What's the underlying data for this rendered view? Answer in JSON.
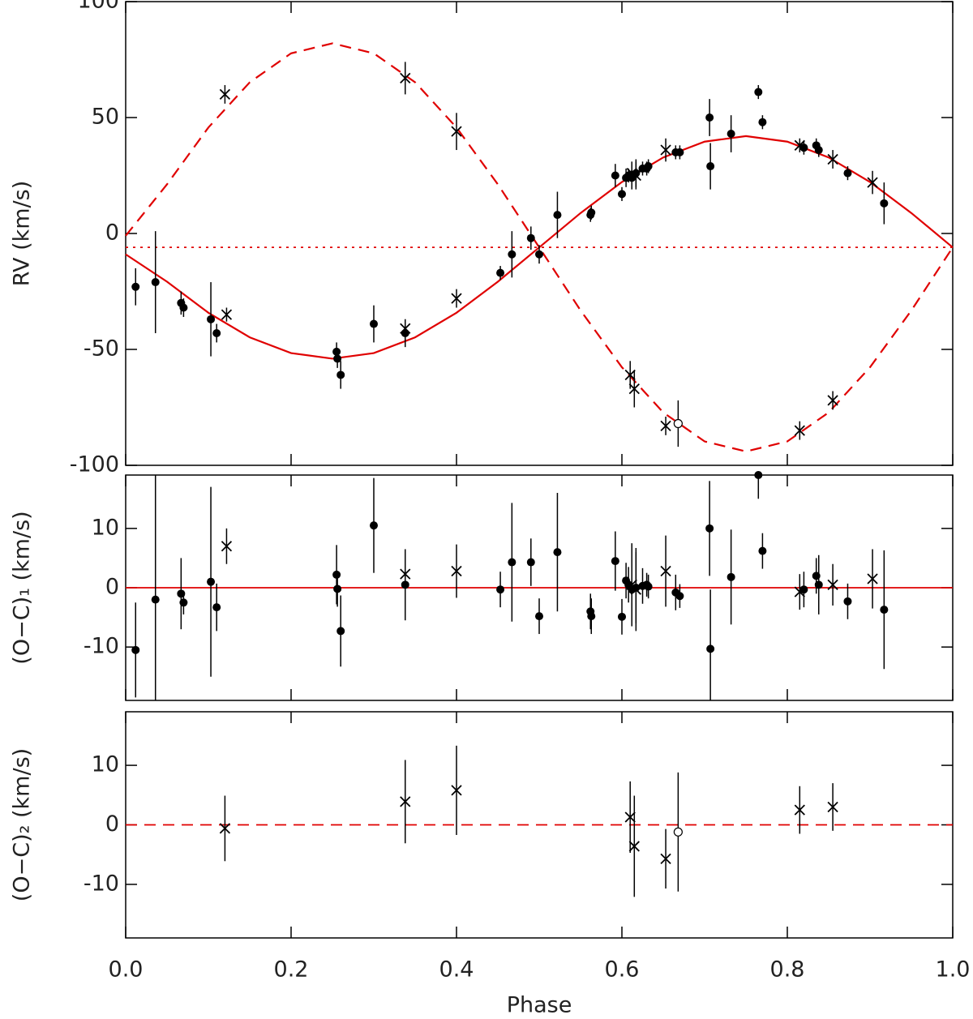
{
  "chart_data": [
    {
      "type": "scatter",
      "ylabel": "RV (km/s)",
      "xlim": [
        0,
        1
      ],
      "ylim": [
        -100,
        100
      ],
      "xticks": [
        0,
        0.2,
        0.4,
        0.6,
        0.8,
        1
      ],
      "yticks": [
        100,
        50,
        0,
        -50,
        -100
      ],
      "reference_lines": [
        {
          "value": -6,
          "color": "#e00000",
          "style": "dotted"
        }
      ],
      "curves": [
        {
          "color": "#e00000",
          "style": "solid",
          "x": [
            0,
            0.05,
            0.1,
            0.15,
            0.2,
            0.25,
            0.3,
            0.35,
            0.4,
            0.45,
            0.5,
            0.55,
            0.6,
            0.65,
            0.7,
            0.75,
            0.8,
            0.85,
            0.9,
            0.95,
            1
          ],
          "values": [
            -9,
            -20.8,
            -34.2,
            -44.8,
            -51.6,
            -54,
            -51.6,
            -44.8,
            -34.2,
            -20.8,
            -6,
            8.8,
            22.2,
            32.8,
            39.6,
            42,
            39.6,
            32.8,
            22.2,
            8.8,
            -6
          ]
        },
        {
          "color": "#e00000",
          "style": "dashed",
          "x": [
            0,
            0.05,
            0.1,
            0.15,
            0.2,
            0.25,
            0.3,
            0.35,
            0.4,
            0.45,
            0.5,
            0.55,
            0.6,
            0.65,
            0.7,
            0.75,
            0.8,
            0.85,
            0.9,
            0.95,
            1
          ],
          "values": [
            -1,
            21.2,
            45.7,
            65.2,
            77.7,
            82,
            77.7,
            65.2,
            45.7,
            21.2,
            -6,
            -33.2,
            -57.7,
            -77.2,
            -89.7,
            -94,
            -89.7,
            -77.2,
            -57.7,
            -33.2,
            -6
          ]
        }
      ],
      "series": [
        {
          "marker": "dot",
          "color": "#000000",
          "x": [
            0.012,
            0.036,
            0.067,
            0.07,
            0.103,
            0.11,
            0.255,
            0.256,
            0.26,
            0.3,
            0.338,
            0.453,
            0.467,
            0.49,
            0.5,
            0.522,
            0.562,
            0.563,
            0.592,
            0.6,
            0.605,
            0.608,
            0.612,
            0.617,
            0.625,
            0.63,
            0.632,
            0.665,
            0.67,
            0.706,
            0.707,
            0.732,
            0.765,
            0.77,
            0.82,
            0.835,
            0.838,
            0.873,
            0.917
          ],
          "values": [
            -23,
            -21,
            -30,
            -32,
            -37,
            -43,
            -51,
            -54,
            -61,
            -39,
            -43,
            -17,
            -9,
            -2,
            -9,
            8,
            8,
            9,
            25,
            17,
            24,
            25,
            24,
            26,
            28,
            28,
            29,
            35,
            35,
            50,
            29,
            43,
            61,
            48,
            37,
            38,
            36,
            26,
            13
          ],
          "errors": [
            8,
            22,
            5,
            4,
            16,
            4,
            4,
            4,
            6,
            8,
            6,
            3,
            10,
            5,
            4,
            10,
            3,
            3,
            5,
            3,
            4,
            3,
            5,
            6,
            3,
            3,
            3,
            3,
            3,
            8,
            10,
            8,
            3,
            3,
            3,
            3,
            3,
            3,
            9
          ]
        },
        {
          "marker": "cross",
          "color": "#000000",
          "x": [
            0.122,
            0.338,
            0.4,
            0.612,
            0.617,
            0.653,
            0.815,
            0.855,
            0.903
          ],
          "values": [
            -35,
            -41,
            -28,
            26,
            25,
            36,
            38,
            32,
            22
          ],
          "errors": [
            3,
            4,
            4,
            5,
            6,
            5,
            3,
            4,
            5
          ]
        },
        {
          "marker": "cross",
          "color": "#000000",
          "x": [
            0.12,
            0.338,
            0.4,
            0.61,
            0.615,
            0.653,
            0.815,
            0.855
          ],
          "values": [
            60,
            67,
            44,
            -61,
            -67,
            -83,
            -85,
            -72
          ],
          "errors": [
            4,
            7,
            8,
            6,
            8,
            4,
            4,
            4
          ]
        },
        {
          "marker": "circle",
          "color": "#000000",
          "x": [
            0.668
          ],
          "values": [
            -82
          ],
          "errors": [
            10
          ]
        }
      ]
    },
    {
      "type": "scatter",
      "ylabel": "(O−C)₁ (km/s)",
      "xlim": [
        0,
        1
      ],
      "ylim": [
        -19,
        19
      ],
      "xticks": [
        0,
        0.2,
        0.4,
        0.6,
        0.8,
        1
      ],
      "yticks": [
        10,
        0,
        -10
      ],
      "reference_lines": [
        {
          "value": 0,
          "color": "#e00000",
          "style": "solid"
        }
      ],
      "series": [
        {
          "marker": "dot",
          "color": "#000000",
          "x": [
            0.012,
            0.036,
            0.067,
            0.07,
            0.103,
            0.11,
            0.255,
            0.256,
            0.26,
            0.3,
            0.338,
            0.453,
            0.467,
            0.49,
            0.5,
            0.522,
            0.562,
            0.563,
            0.592,
            0.6,
            0.605,
            0.608,
            0.612,
            0.617,
            0.625,
            0.63,
            0.632,
            0.665,
            0.67,
            0.706,
            0.707,
            0.732,
            0.765,
            0.77,
            0.82,
            0.835,
            0.838,
            0.873,
            0.917
          ],
          "values": [
            -10.5,
            -2,
            -1,
            -2.5,
            1,
            -3.3,
            2.2,
            -0.2,
            -7.3,
            10.5,
            0.5,
            -0.3,
            4.3,
            4.3,
            -4.8,
            6,
            -4,
            -4.8,
            4.5,
            -4.9,
            1.2,
            0.5,
            -0.3,
            0,
            0.3,
            0.5,
            0.2,
            -0.8,
            -1.4,
            10,
            -10.3,
            1.8,
            19,
            6.2,
            -0.3,
            2,
            0.5,
            -2.3,
            -3.7
          ],
          "errors": [
            8,
            22,
            6,
            2,
            16,
            4,
            5,
            3,
            6,
            8,
            6,
            3,
            10,
            4,
            3,
            10,
            3,
            3,
            5,
            3,
            3,
            3,
            5,
            6,
            3,
            2,
            2,
            3,
            2,
            8,
            10,
            8,
            4,
            3,
            3,
            3,
            5,
            3,
            10
          ]
        },
        {
          "marker": "cross",
          "color": "#000000",
          "x": [
            0.122,
            0.338,
            0.4,
            0.612,
            0.617,
            0.653,
            0.815,
            0.855,
            0.903
          ],
          "values": [
            7,
            2.3,
            2.8,
            0.5,
            -0.3,
            2.8,
            -0.7,
            0.5,
            1.5
          ],
          "errors": [
            3,
            2,
            4.5,
            7,
            7,
            6,
            3,
            3.5,
            5
          ]
        }
      ]
    },
    {
      "type": "scatter",
      "ylabel": "(O−C)₂ (km/s)",
      "xlabel": "Phase",
      "xlim": [
        0,
        1
      ],
      "ylim": [
        -19,
        19
      ],
      "xticks": [
        {
          "value": 0,
          "label": "0.0"
        },
        {
          "value": 0.2,
          "label": "0.2"
        },
        {
          "value": 0.4,
          "label": "0.4"
        },
        {
          "value": 0.6,
          "label": "0.6"
        },
        {
          "value": 0.8,
          "label": "0.8"
        },
        {
          "value": 1,
          "label": "1.0"
        }
      ],
      "yticks": [
        10,
        0,
        -10
      ],
      "reference_lines": [
        {
          "value": 0,
          "color": "#e00000",
          "style": "dashed"
        }
      ],
      "series": [
        {
          "marker": "cross",
          "color": "#000000",
          "x": [
            0.12,
            0.338,
            0.4,
            0.61,
            0.615,
            0.653,
            0.815,
            0.855
          ],
          "values": [
            -0.6,
            3.9,
            5.8,
            1.3,
            -3.6,
            -5.7,
            2.5,
            3
          ],
          "errors": [
            5.5,
            7,
            7.5,
            6,
            8.5,
            5,
            4,
            4
          ]
        },
        {
          "marker": "circle",
          "color": "#000000",
          "x": [
            0.668
          ],
          "values": [
            -1.2
          ],
          "errors": [
            10
          ]
        }
      ]
    }
  ]
}
